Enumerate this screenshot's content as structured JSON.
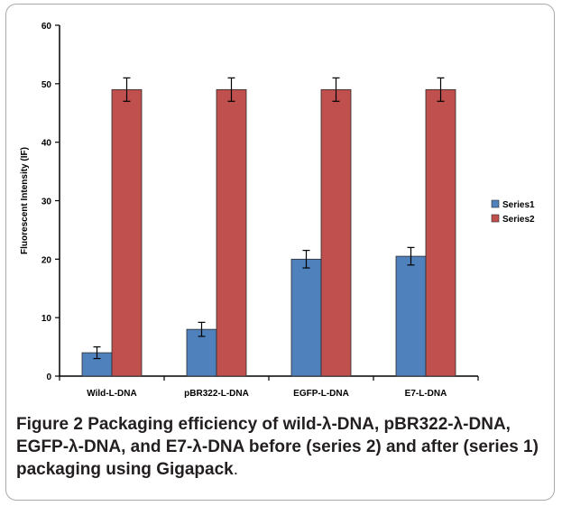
{
  "chart_data": {
    "type": "bar",
    "categories": [
      "Wild-L-DNA",
      "pBR322-L-DNA",
      "EGFP-L-DNA",
      "E7-L-DNA"
    ],
    "series": [
      {
        "name": "Series1",
        "values": [
          4,
          8,
          20,
          20.5
        ],
        "errors": [
          1,
          1.2,
          1.5,
          1.5
        ],
        "color": "#4f81bd"
      },
      {
        "name": "Series2",
        "values": [
          49,
          49,
          49,
          49
        ],
        "errors": [
          2,
          2,
          2,
          2
        ],
        "color": "#c0504d"
      }
    ],
    "ylabel": "Fluorescent Intensity (IF)",
    "xlabel": "",
    "ylim": [
      0,
      60
    ],
    "yticks": [
      0,
      10,
      20,
      30,
      40,
      50,
      60
    ],
    "grid": false,
    "legend_position": "right"
  },
  "caption": {
    "figure_label": "Figure 2",
    "text": "Packaging efficiency of wild-λ-DNA, pBR322-λ-DNA, EGFP-λ-DNA, and E7-λ-DNA before (series 2) and after (series 1) packaging using Gigapack",
    "end": "."
  }
}
